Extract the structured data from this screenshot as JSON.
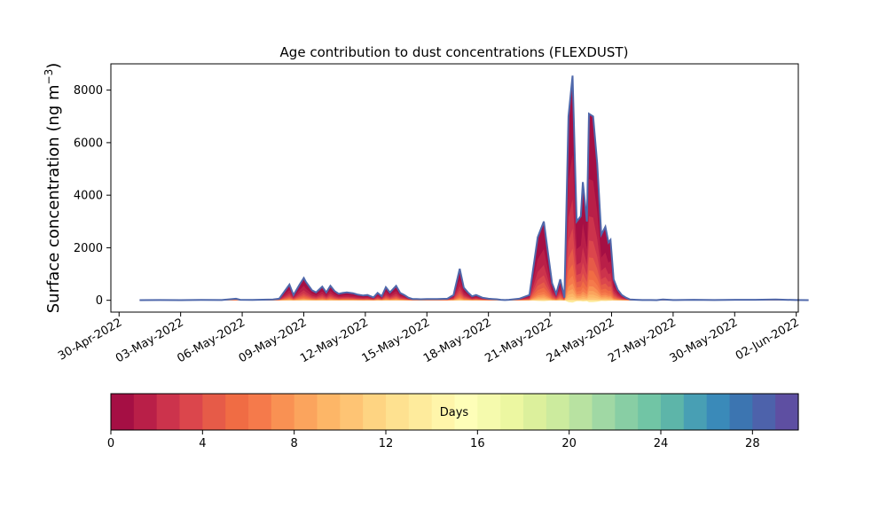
{
  "chart_data": {
    "type": "area",
    "title": "Age contribution to dust concentrations (FLEXDUST)",
    "ylabel_main": "Surface concentration (ng m",
    "ylabel_sup": "−3",
    "ylabel_close": ")",
    "xlabel": "",
    "x_start": "2022-04-29",
    "xlim": [
      0.6,
      34.1
    ],
    "ylim": [
      -450,
      9000
    ],
    "yticks": [
      0,
      2000,
      4000,
      6000,
      8000
    ],
    "ytick_labels": [
      "0",
      "2000",
      "4000",
      "6000",
      "8000"
    ],
    "xticks": [
      1,
      4,
      7,
      10,
      13,
      16,
      19,
      22,
      25,
      28,
      31,
      34
    ],
    "xtick_labels": [
      "30-Apr-2022",
      "03-May-2022",
      "06-May-2022",
      "09-May-2022",
      "12-May-2022",
      "15-May-2022",
      "18-May-2022",
      "21-May-2022",
      "24-May-2022",
      "27-May-2022",
      "30-May-2022",
      "02-Jun-2022"
    ],
    "x_days": [
      2.0,
      3.0,
      4.0,
      5.0,
      6.0,
      6.7,
      6.9,
      7.5,
      8.5,
      8.8,
      9.3,
      9.5,
      9.8,
      10.0,
      10.1,
      10.4,
      10.6,
      10.9,
      11.1,
      11.3,
      11.5,
      11.7,
      11.9,
      12.1,
      12.4,
      12.6,
      12.9,
      13.1,
      13.4,
      13.6,
      13.8,
      14.0,
      14.2,
      14.5,
      14.7,
      14.9,
      15.1,
      15.3,
      15.5,
      15.7,
      16.0,
      16.5,
      17.0,
      17.3,
      17.6,
      17.8,
      18.0,
      18.2,
      18.4,
      18.7,
      19.0,
      19.2,
      19.4,
      19.6,
      19.8,
      20.0,
      20.5,
      21.0,
      21.4,
      21.7,
      21.9,
      22.1,
      22.3,
      22.5,
      22.7,
      22.9,
      23.1,
      23.3,
      23.5,
      23.6,
      23.8,
      23.9,
      24.1,
      24.3,
      24.5,
      24.7,
      24.85,
      24.95,
      25.1,
      25.3,
      25.5,
      25.7,
      25.9,
      26.2,
      26.5,
      26.9,
      27.2,
      27.5,
      28.0,
      29.0,
      30.0,
      31.0,
      32.0,
      33.0,
      34.0,
      34.6
    ],
    "total": [
      5,
      10,
      5,
      15,
      10,
      60,
      20,
      15,
      30,
      60,
      600,
      200,
      600,
      850,
      700,
      380,
      300,
      520,
      300,
      550,
      350,
      250,
      280,
      300,
      270,
      220,
      180,
      200,
      110,
      280,
      150,
      500,
      300,
      550,
      280,
      200,
      100,
      50,
      50,
      40,
      50,
      50,
      60,
      200,
      1200,
      480,
      300,
      150,
      200,
      100,
      60,
      50,
      40,
      20,
      10,
      20,
      60,
      200,
      2400,
      3000,
      1800,
      650,
      250,
      800,
      100,
      7000,
      8550,
      3000,
      3200,
      4500,
      3000,
      7100,
      7000,
      5200,
      2500,
      2800,
      2200,
      2300,
      800,
      400,
      200,
      100,
      30,
      20,
      10,
      10,
      5,
      30,
      10,
      20,
      10,
      20,
      20,
      30,
      10,
      5
    ],
    "bands": [
      {
        "days": "0-1",
        "color": "#a50f44"
      },
      {
        "days": "1-2",
        "color": "#b91f48"
      },
      {
        "days": "2-3",
        "color": "#cc334c"
      },
      {
        "days": "3-4",
        "color": "#db464c"
      },
      {
        "days": "4-5",
        "color": "#e65b48"
      },
      {
        "days": "5-6",
        "color": "#f06c44"
      },
      {
        "days": "6-7",
        "color": "#f57a4b"
      },
      {
        "days": "7-8",
        "color": "#f99153"
      },
      {
        "days": "8-9",
        "color": "#fba45d"
      },
      {
        "days": "9-10",
        "color": "#fdb667"
      },
      {
        "days": "10-11",
        "color": "#fec474"
      },
      {
        "days": "11-12",
        "color": "#fed482"
      },
      {
        "days": "12-13",
        "color": "#fee190"
      },
      {
        "days": "13-14",
        "color": "#feeb9c"
      },
      {
        "days": "14-15",
        "color": "#fff5aa"
      },
      {
        "days": "15-16",
        "color": "#fefeb8"
      },
      {
        "days": "16-17",
        "color": "#f5faad"
      },
      {
        "days": "17-18",
        "color": "#ecf7a1"
      },
      {
        "days": "18-19",
        "color": "#dcf09c"
      },
      {
        "days": "19-20",
        "color": "#cceb9e"
      },
      {
        "days": "20-21",
        "color": "#b8e2a1"
      },
      {
        "days": "21-22",
        "color": "#a0d8a4"
      },
      {
        "days": "22-23",
        "color": "#88cea4"
      },
      {
        "days": "23-24",
        "color": "#71c5a5"
      },
      {
        "days": "24-25",
        "color": "#5db5a9"
      },
      {
        "days": "25-26",
        "color": "#489fb4"
      },
      {
        "days": "26-27",
        "color": "#3a8ab9"
      },
      {
        "days": "27-28",
        "color": "#3c75b1"
      },
      {
        "days": "28-29",
        "color": "#4d62ab"
      },
      {
        "days": "29-30",
        "color": "#5e4fa2"
      }
    ],
    "band_share": [
      0.35,
      0.2,
      0.13,
      0.09,
      0.07,
      0.05,
      0.035,
      0.025,
      0.02,
      0.015,
      0.012,
      0.008,
      0.005,
      0.005
    ],
    "outline_color": "#4f68ab",
    "colorbar": {
      "label": "Days",
      "ticks": [
        0,
        4,
        8,
        12,
        16,
        20,
        24,
        28
      ],
      "tick_labels": [
        "0",
        "4",
        "8",
        "12",
        "16",
        "20",
        "24",
        "28"
      ],
      "range": [
        0,
        30
      ]
    }
  }
}
